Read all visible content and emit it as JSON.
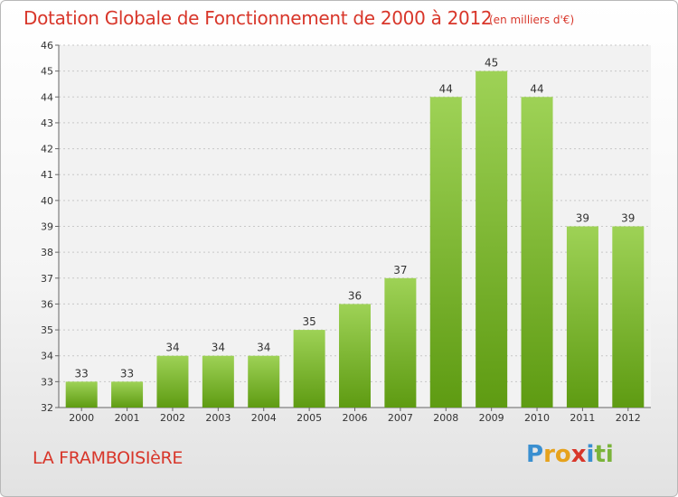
{
  "title": "Dotation Globale de Fonctionnement de 2000 à 2012",
  "subtitle": "(en milliers d'€)",
  "commune": "LA FRAMBOISIèRE",
  "logo": {
    "letters": [
      "P",
      "r",
      "o",
      "x",
      "i",
      "t",
      "i"
    ],
    "colors": [
      "#3a8fd0",
      "#e6a21c",
      "#e6a21c",
      "#d8362a",
      "#3a8fd0",
      "#7ab33a",
      "#7ab33a"
    ]
  },
  "colors": {
    "title": "#d8362a",
    "bar_top": "#9ed256",
    "bar_bottom": "#5e9b12"
  },
  "chart_data": {
    "type": "bar",
    "categories": [
      "2000",
      "2001",
      "2002",
      "2003",
      "2004",
      "2005",
      "2006",
      "2007",
      "2008",
      "2009",
      "2010",
      "2011",
      "2012"
    ],
    "values": [
      33,
      33,
      34,
      34,
      34,
      35,
      36,
      37,
      44,
      45,
      44,
      39,
      39
    ],
    "ylim": [
      32,
      46
    ],
    "yticks": [
      32,
      33,
      34,
      35,
      36,
      37,
      38,
      39,
      40,
      41,
      42,
      43,
      44,
      45,
      46
    ],
    "grid": true,
    "title": "Dotation Globale de Fonctionnement de 2000 à 2012",
    "subtitle": "(en milliers d'€)"
  }
}
